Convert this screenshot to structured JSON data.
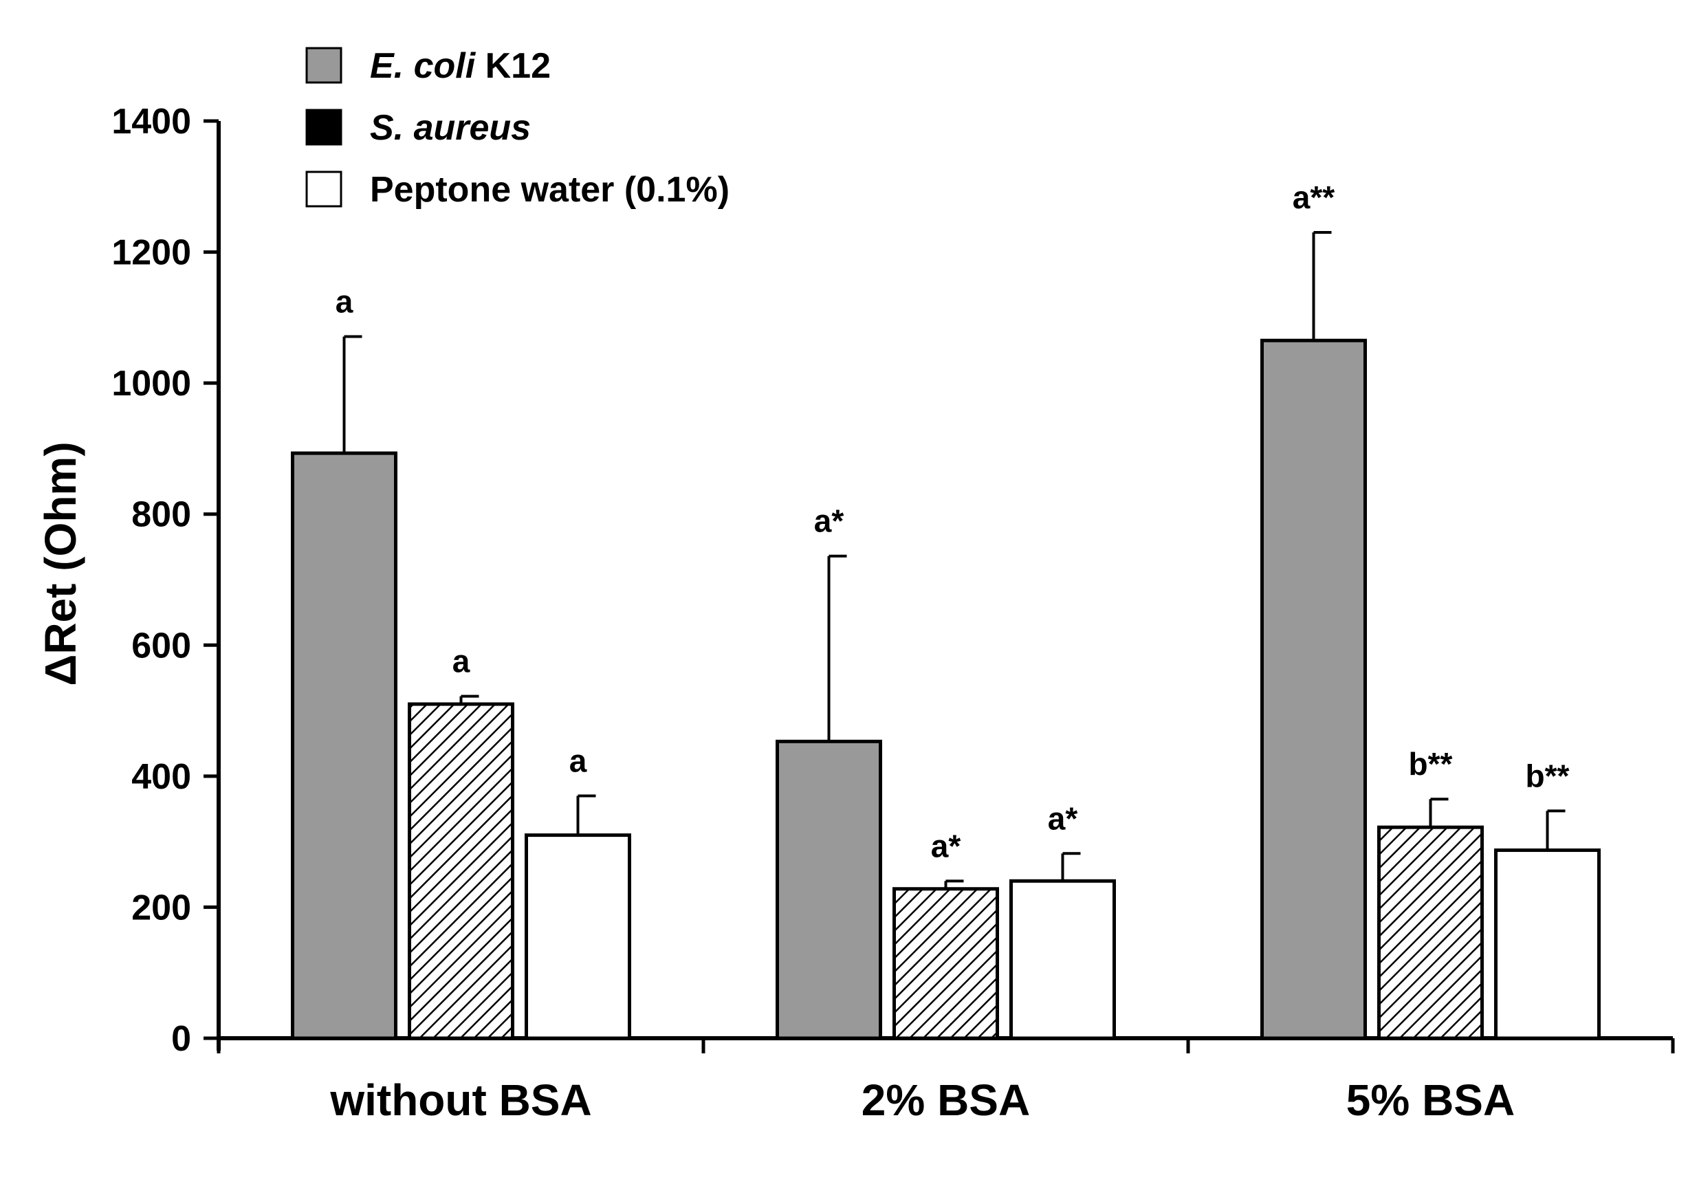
{
  "chart_data": {
    "type": "bar",
    "title": "",
    "xlabel": "",
    "ylabel": "ΔRet (Ohm)",
    "ylim": [
      0,
      1400
    ],
    "yticks": [
      0,
      200,
      400,
      600,
      800,
      1000,
      1200,
      1400
    ],
    "grid": false,
    "legend_position": "top-left",
    "categories": [
      "without BSA",
      "2% BSA",
      "5% BSA"
    ],
    "series": [
      {
        "name": "E. coli K12",
        "name_italic": "E. coli",
        "name_plain": " K12",
        "fill": "#999999",
        "pattern": "solid",
        "values": [
          893,
          453,
          1065
        ],
        "errors": [
          178,
          283,
          165
        ],
        "sig_labels": [
          "a",
          "a*",
          "a**"
        ]
      },
      {
        "name": "S. aureus",
        "name_italic": "S. aureus",
        "name_plain": "",
        "fill": "#000000",
        "pattern": "hatch",
        "values": [
          510,
          228,
          322
        ],
        "errors": [
          12,
          12,
          43
        ],
        "sig_labels": [
          "a",
          "a*",
          "b**"
        ]
      },
      {
        "name": "Peptone water (0.1%)",
        "name_italic": "",
        "name_plain": "Peptone water (0.1%)",
        "fill": "#ffffff",
        "pattern": "solid",
        "values": [
          310,
          240,
          287
        ],
        "errors": [
          60,
          42,
          60
        ],
        "sig_labels": [
          "a",
          "a*",
          "b**"
        ]
      }
    ]
  }
}
